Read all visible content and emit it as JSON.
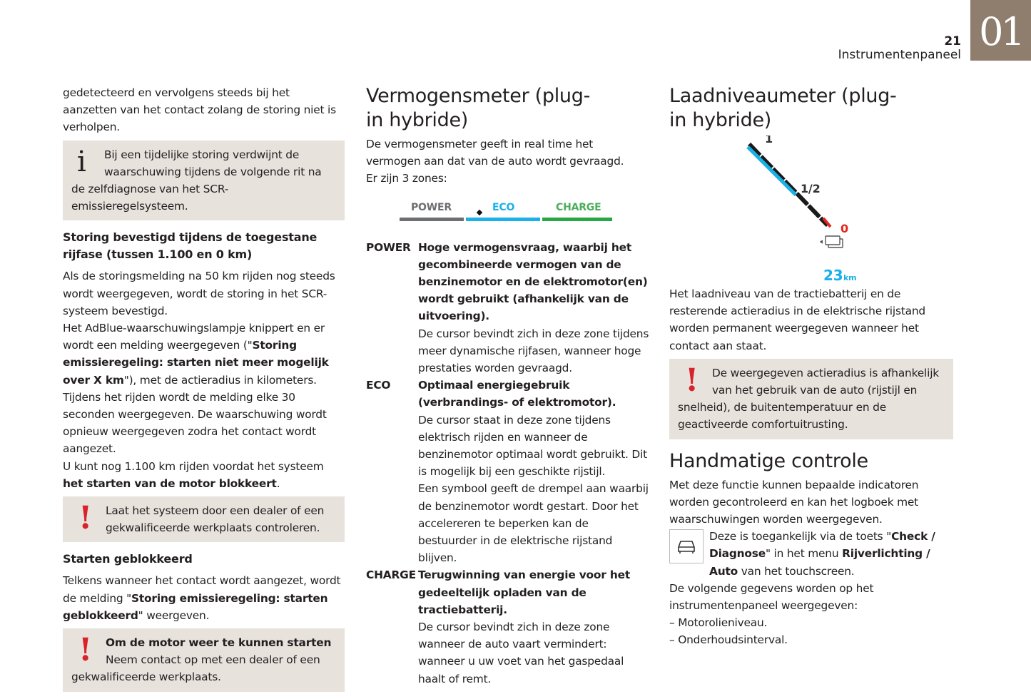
{
  "header": {
    "page_number": "21",
    "section": "Instrumentenpaneel",
    "chapter": "01"
  },
  "col1": {
    "intro": [
      [
        "gedetecteerd en vervolgens steeds bij het aanzetten van het contact zolang de storing niet is verholpen.",
        false
      ]
    ],
    "info_box": "Bij een tijdelijke storing verdwijnt de waarschuwing tijdens de volgende rit na de zelfdiagnose van het SCR-emissieregelsysteem.",
    "heading1": "Storing bevestigd tijdens de toegestane rijfase (tussen 1.100 en 0 km)",
    "para1": [
      [
        "Als de storingsmelding na 50 km rijden nog steeds wordt weergegeven, wordt de storing in het SCR-systeem bevestigd.",
        false
      ]
    ],
    "para2": [
      [
        "Het AdBlue-waarschuwingslampje knippert en er wordt een melding weergegeven (\"",
        false
      ],
      [
        "Storing emissieregeling: starten niet meer mogelijk over X km",
        true
      ],
      [
        "\"), met de actieradius in kilometers.",
        false
      ]
    ],
    "para3": [
      [
        "Tijdens het rijden wordt de melding elke 30 seconden weergegeven. De waarschuwing wordt opnieuw weergegeven zodra het contact wordt aangezet.",
        false
      ]
    ],
    "para4": [
      [
        "U kunt nog 1.100 km rijden voordat het systeem ",
        false
      ],
      [
        "het starten van de motor blokkeert",
        true
      ],
      [
        ".",
        false
      ]
    ],
    "warn1": "Laat het systeem door een dealer of een gekwalificeerde werkplaats controleren.",
    "heading2": "Starten geblokkeerd",
    "para5": [
      [
        "Telkens wanneer het contact wordt aangezet, wordt de melding \"",
        false
      ],
      [
        "Storing emissieregeling: starten geblokkeerd",
        true
      ],
      [
        "\" weergeven.",
        false
      ]
    ],
    "warn2_title": "Om de motor weer te kunnen starten",
    "warn2": "Neem contact op met een dealer of een gekwalificeerde werkplaats."
  },
  "col2": {
    "title": "Vermogensmeter (plug-in hybride)",
    "intro": "De vermogensmeter geeft in real time het vermogen aan dat van de auto wordt gevraagd.",
    "zones_count": "Er zijn 3 zones:",
    "zones": [
      {
        "label": "POWER",
        "color": "#6d6e71"
      },
      {
        "label": "ECO",
        "color": "#1ab0e8"
      },
      {
        "label": "CHARGE",
        "color": "#27a844"
      }
    ],
    "defs": [
      {
        "key": "POWER",
        "bold": "Hoge vermogensvraag, waarbij het gecombineerde vermogen van de benzinemotor en de elektromotor(en) wordt gebruikt (afhankelijk van de uitvoering).",
        "text": [
          "De cursor bevindt zich in deze zone tijdens meer dynamische rijfasen, wanneer hoge prestaties worden gevraagd."
        ]
      },
      {
        "key": "ECO",
        "bold": "Optimaal energiegebruik (verbrandings- of elektromotor).",
        "text": [
          "De cursor staat in deze zone tijdens elektrisch rijden en wanneer de benzinemotor optimaal wordt gebruikt. Dit is mogelijk bij een geschikte rijstijl.",
          "Een symbool geeft de drempel aan waarbij de benzinemotor wordt gestart. Door het accelereren te beperken kan de bestuurder in de elektrische rijstand blijven."
        ]
      },
      {
        "key": "CHARGE",
        "bold": "Terugwinning van energie voor het gedeeltelijk opladen van de tractiebatterij.",
        "text": [
          "De cursor bevindt zich in deze zone wanneer de auto vaart vermindert: wanneer u uw voet van het gaspedaal haalt of remt."
        ]
      }
    ]
  },
  "col3": {
    "title": "Laadniveaumeter (plug-in hybride)",
    "gauge": {
      "label_full": "1",
      "label_half": "1/2",
      "label_empty": "0",
      "range_value": "23",
      "range_unit": "km",
      "charge_level": 0.6,
      "color_charge": "#1ab0e8",
      "color_low": "#e2261c"
    },
    "intro": "Het laadniveau van de tractiebatterij en de resterende actieradius in de elektrische rijstand worden permanent weergegeven wanneer het contact aan staat.",
    "warn": "De weergegeven actieradius is afhankelijk van het gebruik van de auto (rijstijl en snelheid), de buitentemperatuur en de geactiveerde comfortuitrusting.",
    "heading": "Handmatige controle",
    "para1": "Met deze functie kunnen bepaalde indicatoren worden gecontroleerd en kan het logboek met waarschuwingen worden weergegeven.",
    "para2": [
      [
        "Deze is toegankelijk via de toets \"",
        false
      ],
      [
        "Check / Diagnose",
        true
      ],
      [
        "\" in het menu ",
        false
      ],
      [
        "Rijverlichting / Auto",
        true
      ],
      [
        " van het touchscreen.",
        false
      ]
    ],
    "para3": "De volgende gegevens worden op het instrumentenpaneel weergegeven:",
    "list": [
      "Motorolieniveau.",
      "Onderhoudsinterval."
    ]
  }
}
